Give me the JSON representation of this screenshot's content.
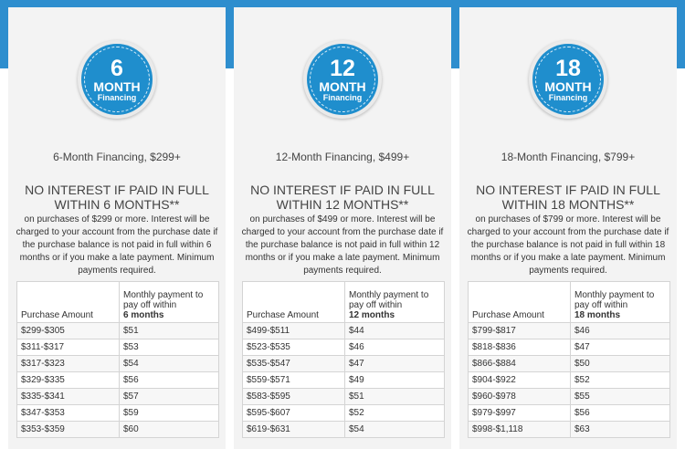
{
  "colors": {
    "brand": "#2e8ece",
    "badge": "#1f8ecd",
    "card": "#f3f3f3"
  },
  "plans": [
    {
      "badge_number": "6",
      "badge_word": "MONTH",
      "badge_sub": "Financing",
      "subtitle": "6-Month Financing, $299+",
      "headline": "NO INTEREST IF PAID IN FULL WITHIN 6 MONTHS**",
      "description": "on purchases of $299 or more. Interest will be charged to your account from the purchase date if the purchase balance is not paid in full within 6 months or if you make a late payment. Minimum payments required.",
      "col1": "Purchase Amount",
      "col2": "Monthly payment to pay off within",
      "col2_bold": "6 months",
      "rows": [
        [
          "$299-$305",
          "$51"
        ],
        [
          "$311-$317",
          "$53"
        ],
        [
          "$317-$323",
          "$54"
        ],
        [
          "$329-$335",
          "$56"
        ],
        [
          "$335-$341",
          "$57"
        ],
        [
          "$347-$353",
          "$59"
        ],
        [
          "$353-$359",
          "$60"
        ]
      ]
    },
    {
      "badge_number": "12",
      "badge_word": "MONTH",
      "badge_sub": "Financing",
      "subtitle": "12-Month Financing, $499+",
      "headline": "NO INTEREST IF PAID IN FULL WITHIN 12 MONTHS**",
      "description": "on purchases of $499 or more. Interest will be charged to your account from the purchase date if the purchase balance is not paid in full within 12 months or if you make a late payment. Minimum payments required.",
      "col1": "Purchase Amount",
      "col2": "Monthly payment to pay off within",
      "col2_bold": "12 months",
      "rows": [
        [
          "$499-$511",
          "$44"
        ],
        [
          "$523-$535",
          "$46"
        ],
        [
          "$535-$547",
          "$47"
        ],
        [
          "$559-$571",
          "$49"
        ],
        [
          "$583-$595",
          "$51"
        ],
        [
          "$595-$607",
          "$52"
        ],
        [
          "$619-$631",
          "$54"
        ]
      ]
    },
    {
      "badge_number": "18",
      "badge_word": "MONTH",
      "badge_sub": "Financing",
      "subtitle": "18-Month Financing, $799+",
      "headline": "NO INTEREST IF PAID IN FULL WITHIN 18 MONTHS**",
      "description": "on purchases of $799 or more. Interest will be charged to your account from the purchase date if the purchase balance is not paid in full within 18 months or if you make a late payment. Minimum payments required.",
      "col1": "Purchase Amount",
      "col2": "Monthly payment to pay off within",
      "col2_bold": "18 months",
      "rows": [
        [
          "$799-$817",
          "$46"
        ],
        [
          "$818-$836",
          "$47"
        ],
        [
          "$866-$884",
          "$50"
        ],
        [
          "$904-$922",
          "$52"
        ],
        [
          "$960-$978",
          "$55"
        ],
        [
          "$979-$997",
          "$56"
        ],
        [
          "$998-$1,118",
          "$63"
        ]
      ]
    }
  ]
}
